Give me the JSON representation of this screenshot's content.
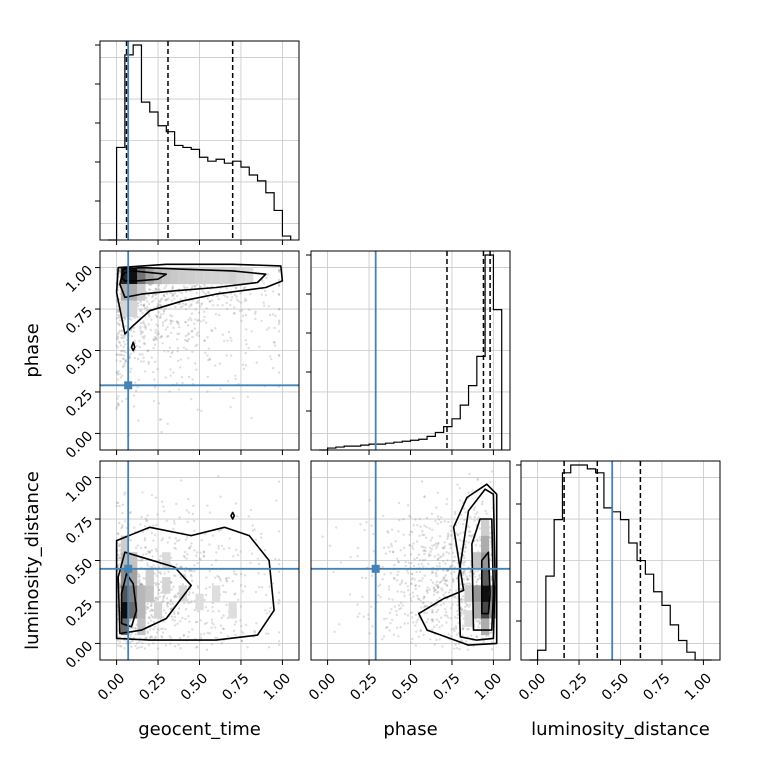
{
  "chart_data": {
    "type": "corner",
    "parameters": [
      "geocent_time",
      "phase",
      "luminosity_distance"
    ],
    "axis_labels": {
      "geocent_time": "geocent_time",
      "phase": "phase",
      "luminosity_distance": "luminosity_distance"
    },
    "range": [
      0,
      1
    ],
    "ticks": [
      "0.00",
      "0.25",
      "0.50",
      "0.75",
      "1.00"
    ],
    "grid": true,
    "colors": {
      "truth": "#4682b4",
      "hist": "#000000",
      "quantile": "#000000"
    },
    "truths": {
      "geocent_time": 0.07,
      "phase": 0.29,
      "luminosity_distance": 0.45
    },
    "quantiles": {
      "geocent_time": [
        0.06,
        0.31,
        0.7
      ],
      "phase": [
        0.72,
        0.94,
        0.98
      ],
      "luminosity_distance": [
        0.16,
        0.36,
        0.62
      ]
    },
    "histograms": {
      "geocent_time": {
        "edges": [
          -0.05,
          0.0,
          0.05,
          0.1,
          0.15,
          0.2,
          0.25,
          0.3,
          0.35,
          0.4,
          0.45,
          0.5,
          0.55,
          0.6,
          0.65,
          0.7,
          0.75,
          0.8,
          0.85,
          0.9,
          0.95,
          1.0,
          1.05
        ],
        "counts": [
          0,
          0.47,
          0.94,
          0.99,
          0.7,
          0.65,
          0.58,
          0.55,
          0.48,
          0.47,
          0.46,
          0.42,
          0.4,
          0.41,
          0.39,
          0.4,
          0.37,
          0.33,
          0.3,
          0.24,
          0.15,
          0.02
        ]
      },
      "phase": {
        "edges": [
          -0.05,
          0.0,
          0.05,
          0.1,
          0.15,
          0.2,
          0.25,
          0.3,
          0.35,
          0.4,
          0.45,
          0.5,
          0.55,
          0.6,
          0.65,
          0.7,
          0.75,
          0.8,
          0.85,
          0.9,
          0.95,
          1.0,
          1.05
        ],
        "counts": [
          0,
          0.01,
          0.015,
          0.02,
          0.02,
          0.025,
          0.03,
          0.03,
          0.035,
          0.04,
          0.045,
          0.05,
          0.055,
          0.07,
          0.09,
          0.12,
          0.16,
          0.23,
          0.33,
          0.48,
          1.0,
          0.72
        ]
      },
      "luminosity_distance": {
        "edges": [
          -0.05,
          0.0,
          0.05,
          0.1,
          0.15,
          0.2,
          0.25,
          0.3,
          0.35,
          0.4,
          0.45,
          0.5,
          0.55,
          0.6,
          0.65,
          0.7,
          0.75,
          0.8,
          0.85,
          0.9,
          0.95,
          1.0,
          1.05
        ],
        "counts": [
          0,
          0.05,
          0.43,
          0.72,
          0.96,
          1.0,
          1.0,
          0.98,
          0.96,
          0.78,
          0.76,
          0.72,
          0.6,
          0.51,
          0.44,
          0.35,
          0.28,
          0.18,
          0.1,
          0.04,
          0.0,
          0
        ]
      }
    },
    "pairs": [
      {
        "x": "geocent_time",
        "y": "phase",
        "density_cells": [
          [
            0.05,
            0.95,
            0.9
          ],
          [
            0.1,
            0.95,
            1.0
          ],
          [
            0.15,
            0.95,
            0.55
          ],
          [
            0.2,
            0.95,
            0.35
          ],
          [
            0.25,
            0.95,
            0.25
          ],
          [
            0.3,
            0.95,
            0.2
          ],
          [
            0.35,
            0.95,
            0.18
          ],
          [
            0.4,
            0.95,
            0.16
          ],
          [
            0.45,
            0.95,
            0.15
          ],
          [
            0.5,
            0.95,
            0.14
          ],
          [
            0.55,
            0.95,
            0.13
          ],
          [
            0.6,
            0.95,
            0.13
          ],
          [
            0.65,
            0.95,
            0.12
          ],
          [
            0.7,
            0.95,
            0.14
          ],
          [
            0.75,
            0.95,
            0.1
          ],
          [
            0.8,
            0.95,
            0.08
          ],
          [
            0.05,
            0.85,
            0.3
          ],
          [
            0.1,
            0.85,
            0.3
          ],
          [
            0.15,
            0.85,
            0.15
          ],
          [
            0.05,
            0.75,
            0.12
          ],
          [
            0.1,
            0.75,
            0.12
          ]
        ],
        "contours": [
          [
            [
              0.03,
              0.94
            ],
            [
              0.05,
              0.97
            ],
            [
              0.1,
              0.98
            ],
            [
              0.2,
              0.97
            ],
            [
              0.3,
              0.96
            ],
            [
              0.25,
              0.93
            ],
            [
              0.12,
              0.92
            ],
            [
              0.05,
              0.92
            ]
          ],
          [
            [
              0.02,
              0.9
            ],
            [
              0.04,
              0.99
            ],
            [
              0.15,
              1.0
            ],
            [
              0.4,
              0.99
            ],
            [
              0.7,
              0.98
            ],
            [
              0.9,
              0.96
            ],
            [
              0.85,
              0.91
            ],
            [
              0.6,
              0.88
            ],
            [
              0.35,
              0.86
            ],
            [
              0.15,
              0.84
            ],
            [
              0.05,
              0.82
            ]
          ],
          [
            [
              0.0,
              0.85
            ],
            [
              0.01,
              1.0
            ],
            [
              0.3,
              1.02
            ],
            [
              0.7,
              1.02
            ],
            [
              0.99,
              1.01
            ],
            [
              1.0,
              0.92
            ],
            [
              0.9,
              0.88
            ],
            [
              0.6,
              0.84
            ],
            [
              0.4,
              0.8
            ],
            [
              0.2,
              0.74
            ],
            [
              0.1,
              0.65
            ],
            [
              0.05,
              0.6
            ],
            [
              0.03,
              0.7
            ]
          ],
          [
            [
              0.09,
              0.52
            ],
            [
              0.1,
              0.55
            ],
            [
              0.11,
              0.52
            ],
            [
              0.1,
              0.5
            ]
          ]
        ]
      },
      {
        "x": "geocent_time",
        "y": "luminosity_distance",
        "density_cells": [
          [
            0.05,
            0.2,
            1.0
          ],
          [
            0.05,
            0.3,
            0.7
          ],
          [
            0.05,
            0.1,
            0.6
          ],
          [
            0.1,
            0.2,
            0.6
          ],
          [
            0.1,
            0.3,
            0.5
          ],
          [
            0.05,
            0.4,
            0.45
          ],
          [
            0.1,
            0.4,
            0.35
          ],
          [
            0.15,
            0.3,
            0.25
          ],
          [
            0.2,
            0.3,
            0.2
          ],
          [
            0.15,
            0.2,
            0.25
          ],
          [
            0.2,
            0.4,
            0.15
          ],
          [
            0.3,
            0.35,
            0.12
          ],
          [
            0.3,
            0.5,
            0.1
          ],
          [
            0.4,
            0.3,
            0.1
          ],
          [
            0.05,
            0.5,
            0.25
          ],
          [
            0.05,
            0.6,
            0.15
          ],
          [
            0.1,
            0.5,
            0.2
          ],
          [
            0.15,
            0.1,
            0.2
          ],
          [
            0.25,
            0.2,
            0.12
          ],
          [
            0.5,
            0.25,
            0.08
          ],
          [
            0.6,
            0.3,
            0.08
          ],
          [
            0.7,
            0.2,
            0.08
          ]
        ],
        "contours": [
          [
            [
              0.03,
              0.12
            ],
            [
              0.03,
              0.3
            ],
            [
              0.06,
              0.42
            ],
            [
              0.1,
              0.36
            ],
            [
              0.12,
              0.2
            ],
            [
              0.09,
              0.1
            ]
          ],
          [
            [
              0.02,
              0.06
            ],
            [
              0.01,
              0.4
            ],
            [
              0.05,
              0.55
            ],
            [
              0.15,
              0.52
            ],
            [
              0.35,
              0.46
            ],
            [
              0.45,
              0.35
            ],
            [
              0.3,
              0.15
            ],
            [
              0.15,
              0.08
            ]
          ],
          [
            [
              0.0,
              0.03
            ],
            [
              0.0,
              0.62
            ],
            [
              0.2,
              0.7
            ],
            [
              0.45,
              0.65
            ],
            [
              0.65,
              0.7
            ],
            [
              0.8,
              0.65
            ],
            [
              0.92,
              0.5
            ],
            [
              0.95,
              0.2
            ],
            [
              0.85,
              0.05
            ],
            [
              0.6,
              0.02
            ],
            [
              0.2,
              0.02
            ]
          ],
          [
            [
              0.69,
              0.77
            ],
            [
              0.7,
              0.79
            ],
            [
              0.71,
              0.77
            ],
            [
              0.7,
              0.75
            ]
          ]
        ]
      },
      {
        "x": "phase",
        "y": "luminosity_distance",
        "density_cells": [
          [
            0.95,
            0.3,
            1.0
          ],
          [
            0.95,
            0.2,
            0.75
          ],
          [
            0.95,
            0.4,
            0.65
          ],
          [
            0.95,
            0.5,
            0.4
          ],
          [
            0.95,
            0.6,
            0.3
          ],
          [
            0.9,
            0.3,
            0.4
          ],
          [
            0.9,
            0.2,
            0.3
          ],
          [
            0.9,
            0.5,
            0.2
          ],
          [
            0.85,
            0.3,
            0.15
          ],
          [
            0.95,
            0.1,
            0.3
          ],
          [
            1.0,
            0.3,
            0.5
          ],
          [
            1.0,
            0.2,
            0.4
          ],
          [
            0.95,
            0.7,
            0.15
          ],
          [
            0.85,
            0.15,
            0.1
          ]
        ],
        "contours": [
          [
            [
              0.93,
              0.18
            ],
            [
              0.93,
              0.5
            ],
            [
              0.97,
              0.55
            ],
            [
              0.98,
              0.3
            ],
            [
              0.97,
              0.18
            ]
          ],
          [
            [
              0.88,
              0.08
            ],
            [
              0.87,
              0.6
            ],
            [
              0.92,
              0.75
            ],
            [
              0.99,
              0.75
            ],
            [
              1.0,
              0.3
            ],
            [
              0.99,
              0.08
            ]
          ],
          [
            [
              0.8,
              0.04
            ],
            [
              0.79,
              0.4
            ],
            [
              0.85,
              0.8
            ],
            [
              0.95,
              0.93
            ],
            [
              1.0,
              0.9
            ],
            [
              1.01,
              0.4
            ],
            [
              1.0,
              0.03
            ],
            [
              0.9,
              0.02
            ]
          ],
          [
            [
              0.55,
              0.18
            ],
            [
              0.7,
              0.27
            ],
            [
              0.82,
              0.32
            ],
            [
              0.76,
              0.7
            ],
            [
              0.84,
              0.88
            ],
            [
              0.96,
              0.96
            ],
            [
              1.02,
              0.9
            ],
            [
              1.02,
              0.0
            ],
            [
              0.85,
              -0.01
            ],
            [
              0.6,
              0.08
            ]
          ]
        ]
      }
    ]
  }
}
